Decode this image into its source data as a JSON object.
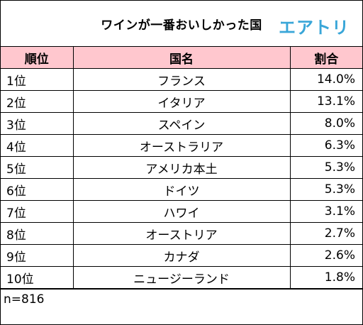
{
  "title": "ワインが一番おいしかった国",
  "logo": "エアトリ",
  "headers": {
    "rank": "順位",
    "country": "国名",
    "share": "割合"
  },
  "rows": [
    {
      "rank": "1位",
      "country": "フランス",
      "share": "14.0%"
    },
    {
      "rank": "2位",
      "country": "イタリア",
      "share": "13.1%"
    },
    {
      "rank": "3位",
      "country": "スペイン",
      "share": "8.0%"
    },
    {
      "rank": "4位",
      "country": "オーストラリア",
      "share": "6.3%"
    },
    {
      "rank": "5位",
      "country": "アメリカ本土",
      "share": "5.3%"
    },
    {
      "rank": "6位",
      "country": "ドイツ",
      "share": "5.3%"
    },
    {
      "rank": "7位",
      "country": "ハワイ",
      "share": "3.1%"
    },
    {
      "rank": "8位",
      "country": "オーストリア",
      "share": "2.7%"
    },
    {
      "rank": "9位",
      "country": "カナダ",
      "share": "2.6%"
    },
    {
      "rank": "10位",
      "country": "ニュージーランド",
      "share": "1.8%"
    }
  ],
  "footer": "n=816",
  "colors": {
    "header_bg": "#ffc7ce",
    "logo": "#39a6d8"
  }
}
